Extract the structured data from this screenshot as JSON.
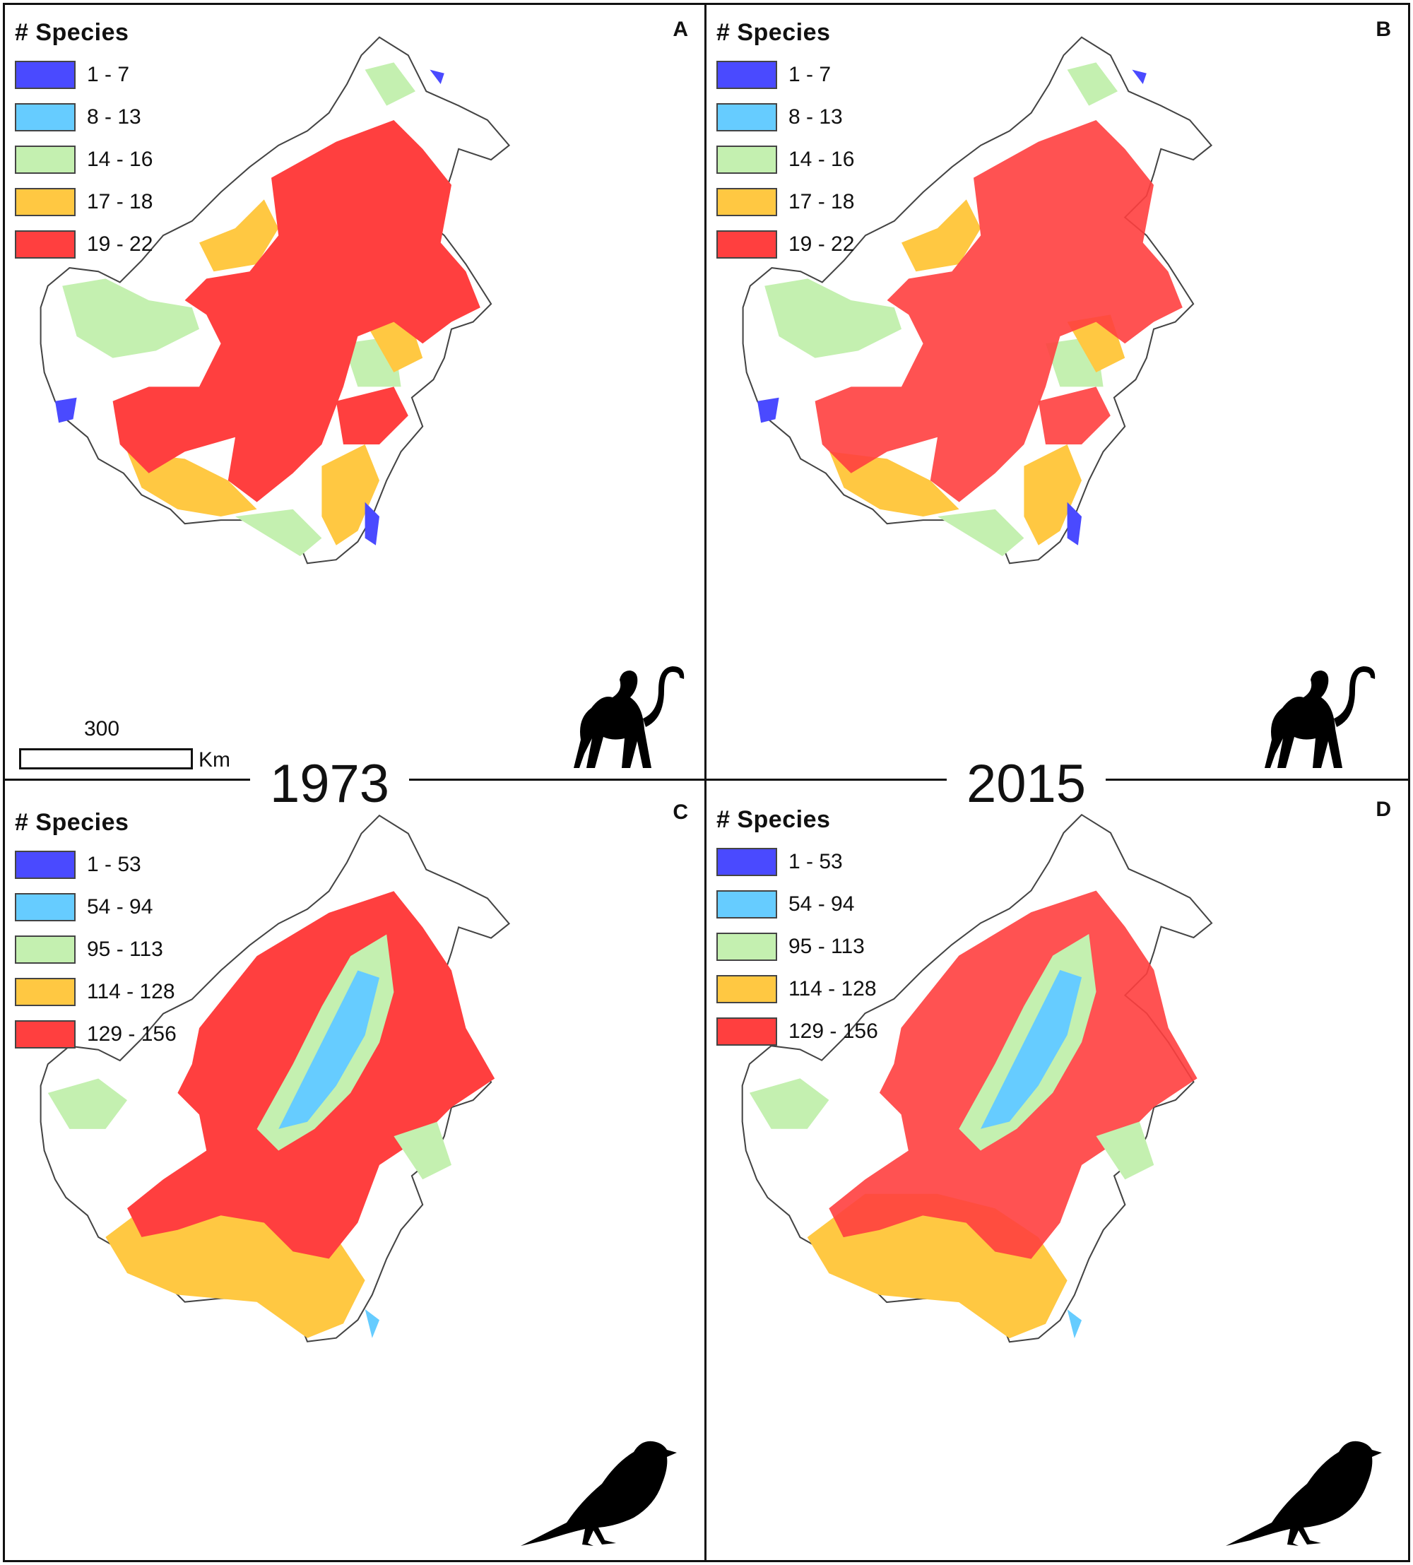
{
  "colors": {
    "class1": "#4a4aff",
    "class2": "#66ccff",
    "class3": "#c4f0b0",
    "class4": "#ffc842",
    "class5": "#ff3f3f",
    "coast": "#444444"
  },
  "panels": [
    {
      "letter": "A",
      "taxon": "primates",
      "legend_title": "# Species",
      "legend": [
        "1 - 7",
        "8 - 13",
        "14 - 16",
        "17 - 18",
        "19 - 22"
      ],
      "silhouette_icon": "monkey-silhouette-icon"
    },
    {
      "letter": "B",
      "taxon": "primates",
      "legend_title": "# Species",
      "legend": [
        "1 - 7",
        "8 - 13",
        "14 - 16",
        "17 - 18",
        "19 - 22"
      ],
      "silhouette_icon": "monkey-silhouette-icon"
    },
    {
      "letter": "C",
      "taxon": "birds",
      "legend_title": "# Species",
      "legend": [
        "1 - 53",
        "54 - 94",
        "95 - 113",
        "114 - 128",
        "129 - 156"
      ],
      "silhouette_icon": "bird-silhouette-icon"
    },
    {
      "letter": "D",
      "taxon": "birds",
      "legend_title": "# Species",
      "legend": [
        "1 - 53",
        "54 - 94",
        "95 - 113",
        "114 - 128",
        "129 - 156"
      ],
      "silhouette_icon": "bird-silhouette-icon"
    }
  ],
  "years": {
    "left": "1973",
    "right": "2015"
  },
  "scale_bar": {
    "value": "300",
    "unit": "Km"
  }
}
